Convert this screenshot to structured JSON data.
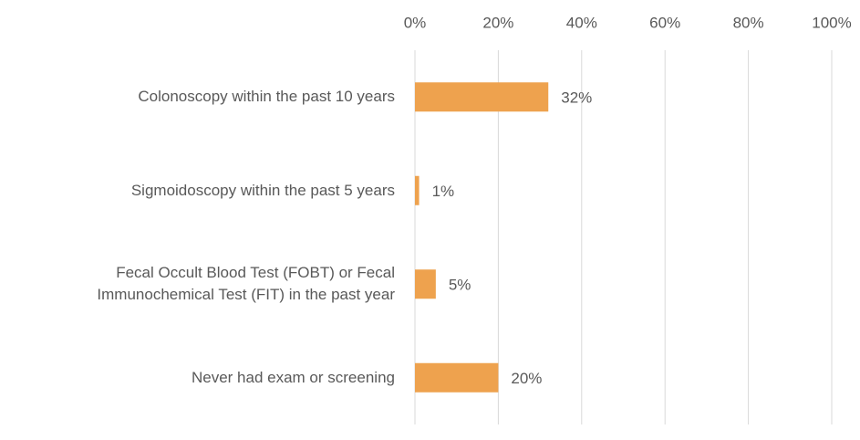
{
  "chart_data": {
    "type": "bar",
    "orientation": "horizontal",
    "categories": [
      "Colonoscopy within the past 10 years",
      "Sigmoidoscopy within the past 5 years",
      "Fecal Occult Blood Test (FOBT) or Fecal Immunochemical Test (FIT) in the past year",
      "Never had exam or screening"
    ],
    "values": [
      32,
      1,
      5,
      20
    ],
    "value_labels": [
      "32%",
      "1%",
      "5%",
      "20%"
    ],
    "color": "#eea24e",
    "xlim": [
      0,
      100
    ],
    "xticks": [
      {
        "value": 0,
        "label": "0%"
      },
      {
        "value": 20,
        "label": "20%"
      },
      {
        "value": 40,
        "label": "40%"
      },
      {
        "value": 60,
        "label": "60%"
      },
      {
        "value": 80,
        "label": "80%"
      },
      {
        "value": 100,
        "label": "100%"
      }
    ],
    "grid": true
  }
}
